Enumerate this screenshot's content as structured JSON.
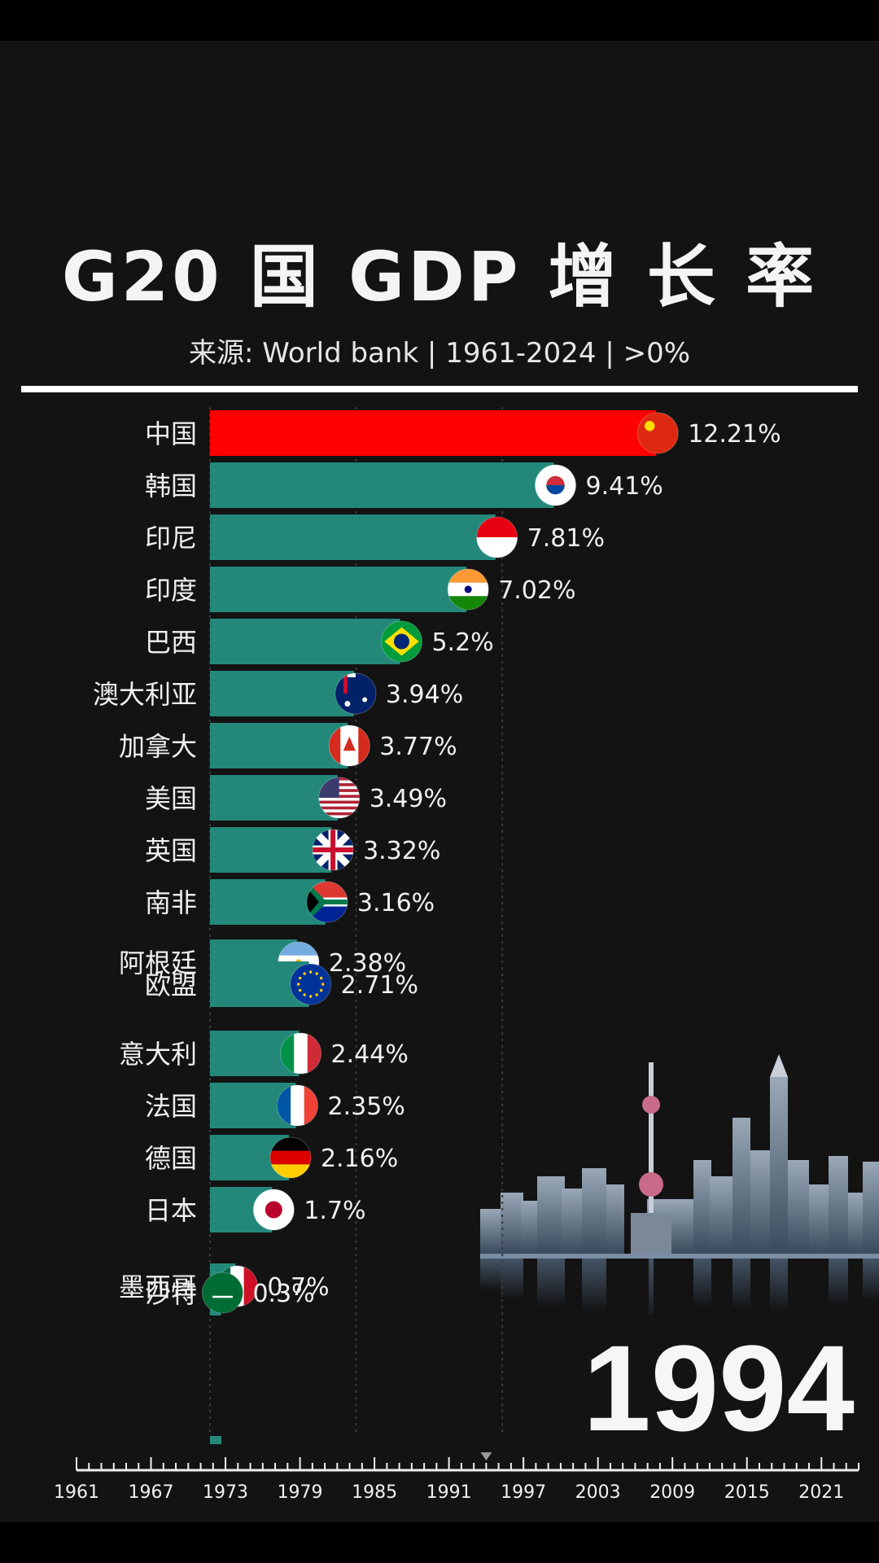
{
  "header": {
    "title": "G20 国 GDP 增 长 率",
    "subtitle": "来源: World bank | 1961-2024 | >0%"
  },
  "year_display": "1994",
  "colors": {
    "top_bar": "#ff0000",
    "bar": "#23887a",
    "background": "#131313",
    "text": "#f0f0f0"
  },
  "chart_data": {
    "type": "bar",
    "orientation": "horizontal",
    "title": "G20 国 GDP 增 长 率",
    "subtitle": "来源: World bank | 1961-2024 | >0%",
    "year": "1994",
    "xlim": [
      0,
      13
    ],
    "timeline": {
      "ticks": [
        "1961",
        "1967",
        "1973",
        "1979",
        "1985",
        "1991",
        "1997",
        "2003",
        "2009",
        "2015",
        "2021"
      ],
      "current": "1994",
      "range": [
        1961,
        2024
      ]
    },
    "series": [
      {
        "name": "中国",
        "value": 12.21,
        "label": "12.21%",
        "flag": "china-flag-icon"
      },
      {
        "name": "韩国",
        "value": 9.41,
        "label": "9.41%",
        "flag": "south-korea-flag-icon"
      },
      {
        "name": "印尼",
        "value": 7.81,
        "label": "7.81%",
        "flag": "indonesia-flag-icon"
      },
      {
        "name": "印度",
        "value": 7.02,
        "label": "7.02%",
        "flag": "india-flag-icon"
      },
      {
        "name": "巴西",
        "value": 5.2,
        "label": "5.2%",
        "flag": "brazil-flag-icon"
      },
      {
        "name": "澳大利亚",
        "value": 3.94,
        "label": "3.94%",
        "flag": "australia-flag-icon"
      },
      {
        "name": "加拿大",
        "value": 3.77,
        "label": "3.77%",
        "flag": "canada-flag-icon"
      },
      {
        "name": "美国",
        "value": 3.49,
        "label": "3.49%",
        "flag": "usa-flag-icon"
      },
      {
        "name": "英国",
        "value": 3.32,
        "label": "3.32%",
        "flag": "uk-flag-icon"
      },
      {
        "name": "南非",
        "value": 3.16,
        "label": "3.16%",
        "flag": "south-africa-flag-icon"
      },
      {
        "name": "阿根廷",
        "value": 2.38,
        "label": "2.38%",
        "flag": "argentina-flag-icon"
      },
      {
        "name": "欧盟",
        "value": 2.71,
        "label": "2.71%",
        "flag": "eu-flag-icon"
      },
      {
        "name": "意大利",
        "value": 2.44,
        "label": "2.44%",
        "flag": "italy-flag-icon"
      },
      {
        "name": "法国",
        "value": 2.35,
        "label": "2.35%",
        "flag": "france-flag-icon"
      },
      {
        "name": "德国",
        "value": 2.16,
        "label": "2.16%",
        "flag": "germany-flag-icon"
      },
      {
        "name": "日本",
        "value": 1.7,
        "label": "1.7%",
        "flag": "japan-flag-icon"
      },
      {
        "name": "墨西哥",
        "value": 0.7,
        "label": "0.7%",
        "flag": "mexico-flag-icon"
      },
      {
        "name": "沙特",
        "value": 0.3,
        "label": "0.3%",
        "flag": "saudi-flag-icon"
      }
    ]
  }
}
